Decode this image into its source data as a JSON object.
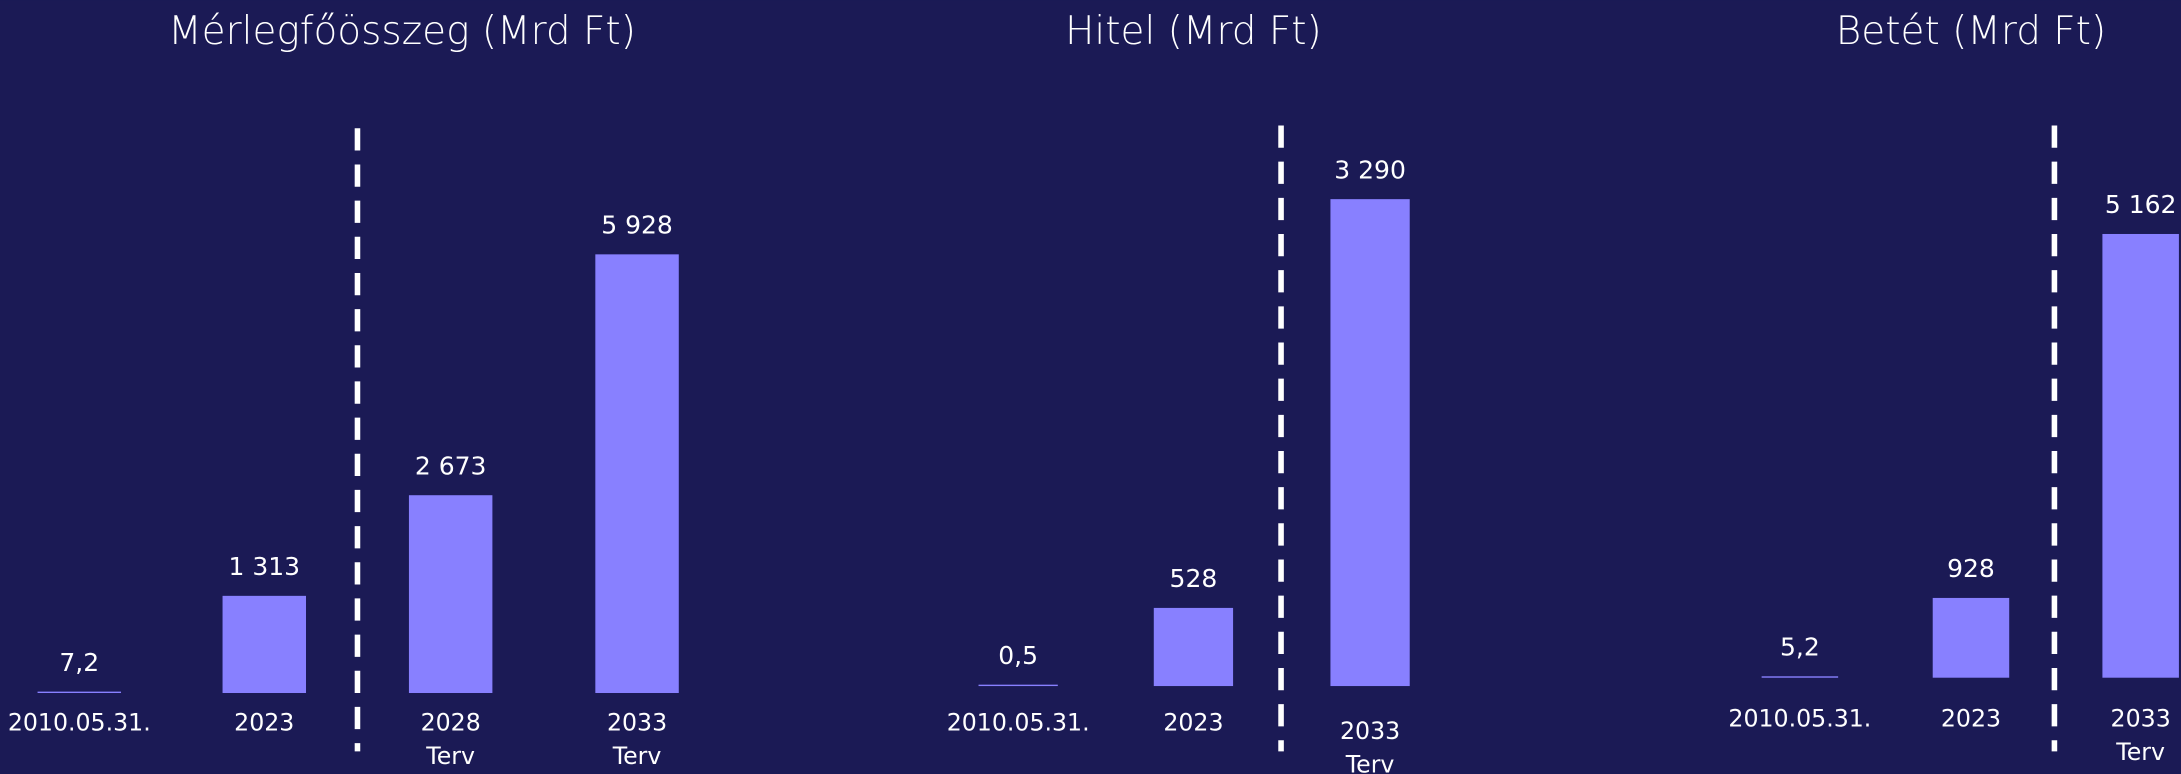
{
  "chart_data": [
    {
      "type": "bar",
      "title": "Mérlegfőösszeg (Mrd Ft)",
      "color": "#8880ff",
      "categories": [
        "2010.05.31.",
        "2023",
        "2028\nTerv",
        "2033\nTerv"
      ],
      "values": [
        7.2,
        1313,
        2673,
        5928
      ],
      "value_labels": [
        "7,2",
        "1 313",
        "2 673",
        "5 928"
      ]
    },
    {
      "type": "bar",
      "title": "Hitel (Mrd Ft)",
      "color": "#8880ff",
      "categories": [
        "2010.05.31.",
        "2023",
        "2033\nTerv"
      ],
      "values": [
        0.5,
        528,
        3290
      ],
      "value_labels": [
        "0,5",
        "528",
        "3 290"
      ]
    },
    {
      "type": "bar",
      "title": "Betét (Mrd Ft)",
      "color": "#8880ff",
      "categories": [
        "2010.05.31.",
        "2023",
        "2033\nTerv"
      ],
      "values": [
        5.2,
        928,
        5162
      ],
      "value_labels": [
        "5,2",
        "928",
        "5 162"
      ]
    }
  ]
}
